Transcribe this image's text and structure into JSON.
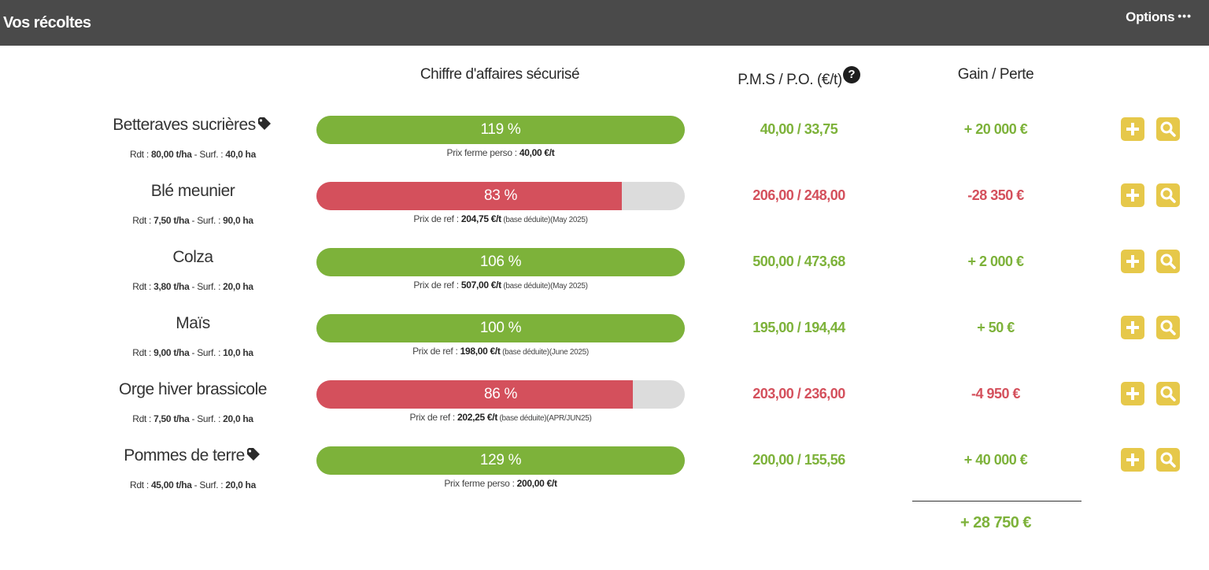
{
  "header": {
    "title": "Vos récoltes",
    "options_label": "Options",
    "options_dots": "•••"
  },
  "columns": {
    "ca": "Chiffre d'affaires sécurisé",
    "pms": "P.M.S / P.O. (€/t)",
    "help_glyph": "?",
    "gain": "Gain / Perte"
  },
  "colors": {
    "positive": "#7db23a",
    "negative": "#d4505c",
    "action_button": "#e6c84a",
    "header_bg": "#4a4a4a"
  },
  "crops": [
    {
      "name": "Betteraves sucrières",
      "tagged": true,
      "rdt_label": "Rdt : ",
      "rdt_value": "80,00 t/ha",
      "surf_label": " - Surf. : ",
      "surf_value": "40,0 ha",
      "percent_value": 119,
      "percent_label": "119 %",
      "status": "green",
      "note_prefix": "Prix ferme perso : ",
      "note_price": "40,00 €/t",
      "note_suffix": "",
      "pms": "40,00 / 33,75",
      "gain": "+ 20 000 €"
    },
    {
      "name": "Blé meunier",
      "tagged": false,
      "rdt_label": "Rdt : ",
      "rdt_value": "7,50 t/ha",
      "surf_label": " - Surf. : ",
      "surf_value": "90,0 ha",
      "percent_value": 83,
      "percent_label": "83 %",
      "status": "red",
      "note_prefix": "Prix de ref : ",
      "note_price": "204,75 €/t",
      "note_suffix": " (base déduite)(May 2025)",
      "pms": "206,00 / 248,00",
      "gain": "-28 350 €"
    },
    {
      "name": "Colza",
      "tagged": false,
      "rdt_label": "Rdt : ",
      "rdt_value": "3,80 t/ha",
      "surf_label": " - Surf. : ",
      "surf_value": "20,0 ha",
      "percent_value": 106,
      "percent_label": "106 %",
      "status": "green",
      "note_prefix": "Prix de ref : ",
      "note_price": "507,00 €/t",
      "note_suffix": " (base déduite)(May 2025)",
      "pms": "500,00 / 473,68",
      "gain": "+ 2 000 €"
    },
    {
      "name": "Maïs",
      "tagged": false,
      "rdt_label": "Rdt : ",
      "rdt_value": "9,00 t/ha",
      "surf_label": " - Surf. : ",
      "surf_value": "10,0 ha",
      "percent_value": 100,
      "percent_label": "100 %",
      "status": "green",
      "note_prefix": "Prix de ref : ",
      "note_price": "198,00 €/t",
      "note_suffix": " (base déduite)(June 2025)",
      "pms": "195,00 / 194,44",
      "gain": "+ 50 €"
    },
    {
      "name": "Orge hiver brassicole",
      "tagged": false,
      "rdt_label": "Rdt : ",
      "rdt_value": "7,50 t/ha",
      "surf_label": " - Surf. : ",
      "surf_value": "20,0 ha",
      "percent_value": 86,
      "percent_label": "86 %",
      "status": "red",
      "note_prefix": "Prix de ref : ",
      "note_price": "202,25 €/t",
      "note_suffix": " (base déduite)(APR/JUN25)",
      "pms": "203,00 / 236,00",
      "gain": "-4 950 €"
    },
    {
      "name": "Pommes de terre",
      "tagged": true,
      "rdt_label": "Rdt : ",
      "rdt_value": "45,00 t/ha",
      "surf_label": " - Surf. : ",
      "surf_value": "20,0 ha",
      "percent_value": 129,
      "percent_label": "129 %",
      "status": "green",
      "note_prefix": "Prix ferme perso : ",
      "note_price": "200,00 €/t",
      "note_suffix": "",
      "pms": "200,00 / 155,56",
      "gain": "+ 40 000 €"
    }
  ],
  "total": "+ 28 750 €",
  "icons": {
    "tag": "tag-icon",
    "add": "plus-icon",
    "detail": "magnifier-icon",
    "help": "question-circle-icon"
  }
}
